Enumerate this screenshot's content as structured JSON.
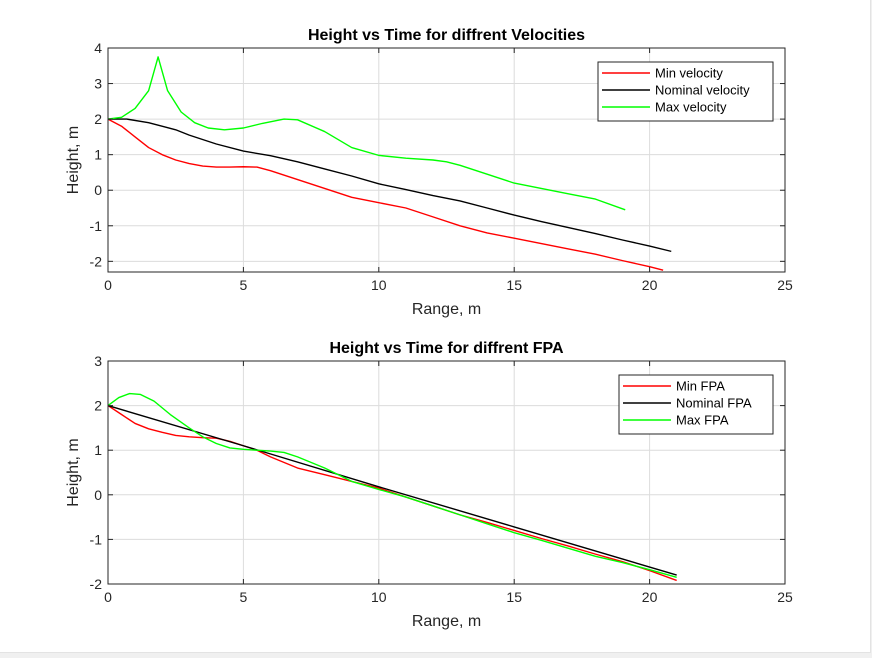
{
  "chart_data": [
    {
      "type": "line",
      "title": "Height vs Time for diffrent Velocities",
      "xlabel": "Range, m",
      "ylabel": "Height, m",
      "xlim": [
        0,
        25
      ],
      "ylim": [
        -2.3,
        4
      ],
      "xticks": [
        0,
        5,
        10,
        15,
        20,
        25
      ],
      "yticks": [
        -2,
        -1,
        0,
        1,
        2,
        3,
        4
      ],
      "grid": true,
      "legend_position": "top-right",
      "series": [
        {
          "name": "Min velocity",
          "color": "#ff0000",
          "points": [
            [
              0,
              2.0
            ],
            [
              0.5,
              1.8
            ],
            [
              1,
              1.5
            ],
            [
              1.5,
              1.2
            ],
            [
              2,
              1.0
            ],
            [
              2.5,
              0.85
            ],
            [
              3,
              0.75
            ],
            [
              3.5,
              0.68
            ],
            [
              4,
              0.65
            ],
            [
              4.5,
              0.65
            ],
            [
              5,
              0.66
            ],
            [
              5.5,
              0.65
            ],
            [
              6,
              0.55
            ],
            [
              7,
              0.3
            ],
            [
              8,
              0.05
            ],
            [
              9,
              -0.2
            ],
            [
              10,
              -0.35
            ],
            [
              11,
              -0.5
            ],
            [
              12,
              -0.75
            ],
            [
              13,
              -1.0
            ],
            [
              14,
              -1.2
            ],
            [
              15,
              -1.35
            ],
            [
              16,
              -1.5
            ],
            [
              17,
              -1.65
            ],
            [
              18,
              -1.8
            ],
            [
              19,
              -1.98
            ],
            [
              20,
              -2.15
            ],
            [
              20.5,
              -2.25
            ]
          ]
        },
        {
          "name": "Nominal velocity",
          "color": "#000000",
          "points": [
            [
              0,
              2.0
            ],
            [
              0.7,
              2.0
            ],
            [
              1.5,
              1.9
            ],
            [
              2.5,
              1.7
            ],
            [
              3,
              1.55
            ],
            [
              4,
              1.3
            ],
            [
              5,
              1.1
            ],
            [
              6,
              0.97
            ],
            [
              7,
              0.8
            ],
            [
              8,
              0.6
            ],
            [
              9,
              0.4
            ],
            [
              10,
              0.18
            ],
            [
              11,
              0.02
            ],
            [
              12,
              -0.15
            ],
            [
              13,
              -0.3
            ],
            [
              14,
              -0.5
            ],
            [
              15,
              -0.7
            ],
            [
              16,
              -0.88
            ],
            [
              17,
              -1.05
            ],
            [
              18,
              -1.22
            ],
            [
              19,
              -1.4
            ],
            [
              20,
              -1.57
            ],
            [
              20.8,
              -1.72
            ]
          ]
        },
        {
          "name": "Max velocity",
          "color": "#00ff00",
          "points": [
            [
              0,
              2.0
            ],
            [
              0.5,
              2.05
            ],
            [
              1,
              2.3
            ],
            [
              1.5,
              2.8
            ],
            [
              1.85,
              3.75
            ],
            [
              2.2,
              2.8
            ],
            [
              2.7,
              2.2
            ],
            [
              3.2,
              1.9
            ],
            [
              3.7,
              1.75
            ],
            [
              4.3,
              1.7
            ],
            [
              5,
              1.75
            ],
            [
              5.7,
              1.88
            ],
            [
              6.5,
              2.0
            ],
            [
              7,
              1.98
            ],
            [
              8,
              1.65
            ],
            [
              9,
              1.2
            ],
            [
              10,
              0.98
            ],
            [
              11,
              0.9
            ],
            [
              12,
              0.85
            ],
            [
              12.5,
              0.8
            ],
            [
              13,
              0.7
            ],
            [
              14,
              0.45
            ],
            [
              15,
              0.2
            ],
            [
              16,
              0.05
            ],
            [
              17,
              -0.1
            ],
            [
              18,
              -0.25
            ],
            [
              19.1,
              -0.55
            ]
          ]
        }
      ]
    },
    {
      "type": "line",
      "title": "Height vs Time for diffrent FPA",
      "xlabel": "Range, m",
      "ylabel": "Height, m",
      "xlim": [
        0,
        25
      ],
      "ylim": [
        -2,
        3
      ],
      "xticks": [
        0,
        5,
        10,
        15,
        20,
        25
      ],
      "yticks": [
        -2,
        -1,
        0,
        1,
        2,
        3
      ],
      "grid": true,
      "legend_position": "top-right",
      "series": [
        {
          "name": "Min FPA",
          "color": "#ff0000",
          "points": [
            [
              0,
              2.0
            ],
            [
              0.5,
              1.8
            ],
            [
              1,
              1.6
            ],
            [
              1.5,
              1.48
            ],
            [
              2,
              1.4
            ],
            [
              2.5,
              1.33
            ],
            [
              3,
              1.3
            ],
            [
              3.5,
              1.28
            ],
            [
              4,
              1.27
            ],
            [
              4.5,
              1.2
            ],
            [
              5,
              1.1
            ],
            [
              5.5,
              1.0
            ],
            [
              6,
              0.85
            ],
            [
              7,
              0.6
            ],
            [
              8,
              0.45
            ],
            [
              9,
              0.3
            ],
            [
              10,
              0.15
            ],
            [
              11,
              -0.05
            ],
            [
              12,
              -0.25
            ],
            [
              13,
              -0.45
            ],
            [
              14,
              -0.62
            ],
            [
              15,
              -0.8
            ],
            [
              16,
              -0.98
            ],
            [
              17,
              -1.15
            ],
            [
              18,
              -1.33
            ],
            [
              19,
              -1.5
            ],
            [
              20,
              -1.7
            ],
            [
              21,
              -1.92
            ]
          ]
        },
        {
          "name": "Nominal FPA",
          "color": "#000000",
          "points": [
            [
              0,
              2.0
            ],
            [
              5,
              1.1
            ],
            [
              10,
              0.18
            ],
            [
              15,
              -0.72
            ],
            [
              21,
              -1.8
            ]
          ]
        },
        {
          "name": "Max FPA",
          "color": "#00ff00",
          "points": [
            [
              0,
              2.0
            ],
            [
              0.4,
              2.18
            ],
            [
              0.8,
              2.27
            ],
            [
              1.2,
              2.25
            ],
            [
              1.7,
              2.1
            ],
            [
              2.3,
              1.8
            ],
            [
              3,
              1.5
            ],
            [
              3.5,
              1.3
            ],
            [
              4,
              1.15
            ],
            [
              4.5,
              1.05
            ],
            [
              5,
              1.02
            ],
            [
              5.5,
              1.0
            ],
            [
              6,
              0.98
            ],
            [
              6.5,
              0.95
            ],
            [
              7,
              0.85
            ],
            [
              8,
              0.6
            ],
            [
              9,
              0.3
            ],
            [
              10,
              0.12
            ],
            [
              11,
              -0.05
            ],
            [
              12,
              -0.25
            ],
            [
              13,
              -0.45
            ],
            [
              14,
              -0.65
            ],
            [
              15,
              -0.85
            ],
            [
              16,
              -1.02
            ],
            [
              17,
              -1.2
            ],
            [
              18,
              -1.38
            ],
            [
              19,
              -1.52
            ],
            [
              20,
              -1.68
            ],
            [
              21,
              -1.85
            ]
          ]
        }
      ]
    }
  ]
}
